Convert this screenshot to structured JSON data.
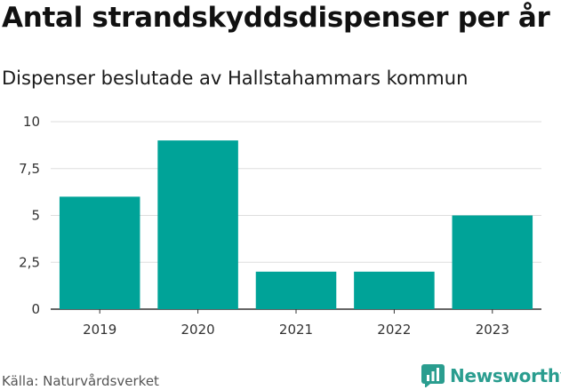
{
  "chart_data": {
    "type": "bar",
    "title": "Antal strandskyddsdispenser per år",
    "subtitle": "Dispenser beslutade av Hallstahammars kommun",
    "categories": [
      "2019",
      "2020",
      "2021",
      "2022",
      "2023"
    ],
    "values": [
      6,
      9,
      2,
      2,
      5
    ],
    "ylim": [
      0,
      10
    ],
    "yticks": [
      0,
      2.5,
      5,
      7.5,
      10
    ],
    "ytick_labels": [
      "0",
      "2,5",
      "5",
      "7,5",
      "10"
    ],
    "xlabel": "",
    "ylabel": "",
    "grid": true,
    "bar_color": "#00a398"
  },
  "footer": {
    "source": "Källa: Naturvårdsverket",
    "brand": "Newsworthy",
    "brand_icon": "newsworthy-logo-icon",
    "brand_color": "#2a9d8f"
  }
}
